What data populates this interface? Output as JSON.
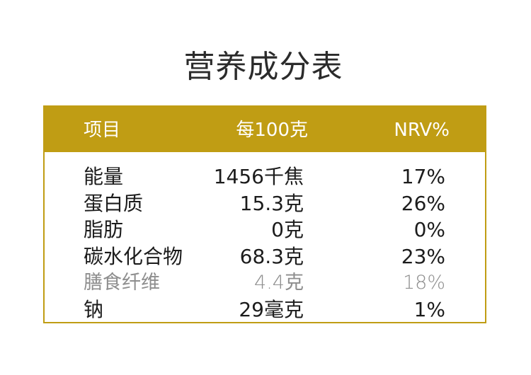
{
  "title": "营养成分表",
  "header": {
    "name": "项目",
    "per100": "每100克",
    "nrv": "NRV%"
  },
  "rows": [
    {
      "name": "能量",
      "per100": "1456千焦",
      "nrv": "17%"
    },
    {
      "name": "蛋白质",
      "per100": "15.3克",
      "nrv": "26%"
    },
    {
      "name": "脂肪",
      "per100": "0克",
      "nrv": "0%"
    },
    {
      "name": "碳水化合物",
      "per100": "68.3克",
      "nrv": "23%"
    },
    {
      "name": "膳食纤维",
      "per100": "4.4克",
      "nrv": "18%"
    },
    {
      "name": "钠",
      "per100": "29毫克",
      "nrv": "1%"
    }
  ],
  "colors": {
    "accent": "#c09d14",
    "sub_row_text": "#8e8e8e"
  }
}
